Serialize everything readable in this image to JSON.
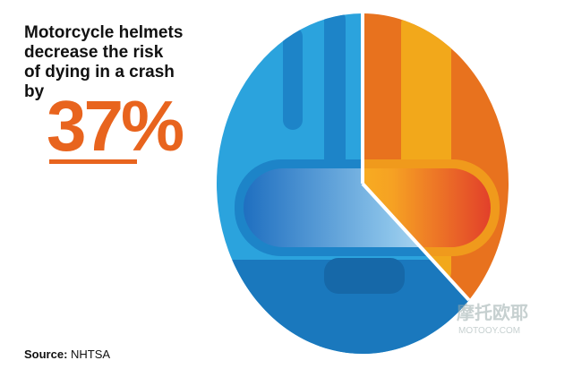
{
  "chart_data": {
    "type": "pie",
    "title": [
      "Motorcycle helmets",
      "decrease the risk",
      "of dying in a crash",
      "by"
    ],
    "values": [
      37,
      63
    ],
    "value_labels": [
      "37%",
      null
    ],
    "colors": [
      "#e8721e",
      "#2ba3dd"
    ],
    "start_angle": 0,
    "direction": "clockwise"
  },
  "footer": {
    "label": "Source:",
    "text": "NHTSA"
  },
  "watermark": {
    "name": "摩托欧耶",
    "url": "MOTOOY.COM"
  }
}
